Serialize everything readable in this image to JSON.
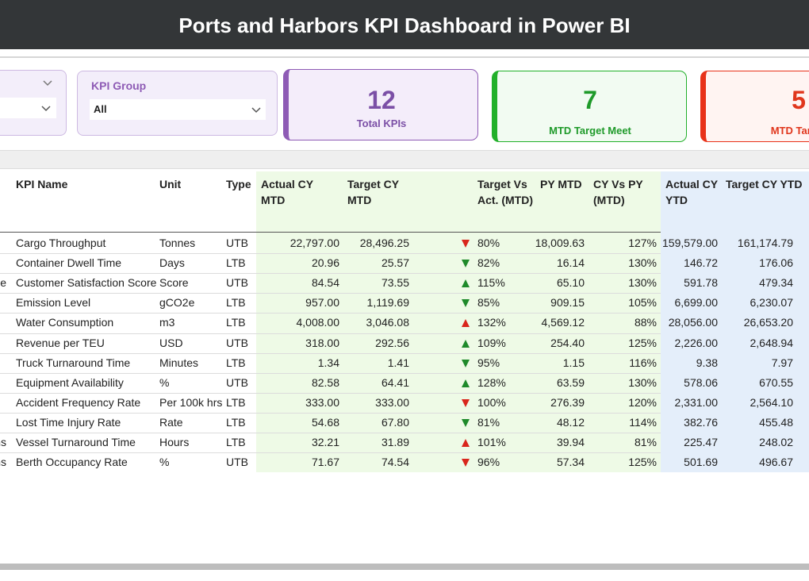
{
  "header": {
    "title": "Ports and Harbors KPI Dashboard in Power BI"
  },
  "slicers": [
    {
      "label": "KPI Group",
      "value": "All"
    }
  ],
  "cards": [
    {
      "value": "12",
      "label": "Total KPIs",
      "color": "#7b4fa6",
      "border": "#8e5bb5",
      "background": "#f4edfa"
    },
    {
      "value": "7",
      "label": "MTD Target Meet",
      "color": "#1f9a2a",
      "border": "#22b02a",
      "background": "#f2fbf2"
    },
    {
      "value": "5",
      "label": "MTD Target",
      "color": "#e0361c",
      "border": "#e8321a",
      "background": "#fff4f2"
    }
  ],
  "table": {
    "headers": [
      "KPI Name",
      "Unit",
      "Type",
      "Actual CY MTD",
      "Target CY MTD",
      "Target Vs Act. (MTD)",
      "PY MTD",
      "CY Vs PY (MTD)",
      "Actual CY YTD",
      "Target CY YTD"
    ],
    "rows": [
      {
        "group": null,
        "cells": [
          "Cargo Throughput",
          "Tonnes",
          "UTB",
          "22,797.00",
          "28,496.25",
          "80%",
          "18,009.63",
          "127%",
          "159,579.00",
          "161,174.79"
        ],
        "arrow": "down",
        "arrow_color": "#d9261c"
      },
      {
        "group": null,
        "cells": [
          "Container Dwell Time",
          "Days",
          "LTB",
          "20.96",
          "25.57",
          "82%",
          "16.14",
          "130%",
          "146.72",
          "176.06"
        ],
        "arrow": "down",
        "arrow_color": "#1e8a2a"
      },
      {
        "group": "e",
        "cells": [
          "Customer Satisfaction Score",
          "Score",
          "UTB",
          "84.54",
          "73.55",
          "115%",
          "65.10",
          "130%",
          "591.78",
          "479.34"
        ],
        "arrow": "up",
        "arrow_color": "#1e8a2a"
      },
      {
        "group": null,
        "cells": [
          "Emission Level",
          "gCO2e",
          "LTB",
          "957.00",
          "1,119.69",
          "85%",
          "909.15",
          "105%",
          "6,699.00",
          "6,230.07"
        ],
        "arrow": "down",
        "arrow_color": "#1e8a2a"
      },
      {
        "group": null,
        "cells": [
          "Water Consumption",
          "m3",
          "LTB",
          "4,008.00",
          "3,046.08",
          "132%",
          "4,569.12",
          "88%",
          "28,056.00",
          "26,653.20"
        ],
        "arrow": "up",
        "arrow_color": "#d9261c"
      },
      {
        "group": null,
        "cells": [
          "Revenue per TEU",
          "USD",
          "UTB",
          "318.00",
          "292.56",
          "109%",
          "254.40",
          "125%",
          "2,226.00",
          "2,648.94"
        ],
        "arrow": "up",
        "arrow_color": "#1e8a2a"
      },
      {
        "group": null,
        "cells": [
          "Truck Turnaround Time",
          "Minutes",
          "LTB",
          "1.34",
          "1.41",
          "95%",
          "1.15",
          "116%",
          "9.38",
          "7.97"
        ],
        "arrow": "down",
        "arrow_color": "#1e8a2a"
      },
      {
        "group": null,
        "cells": [
          "Equipment Availability",
          "%",
          "UTB",
          "82.58",
          "64.41",
          "128%",
          "63.59",
          "130%",
          "578.06",
          "670.55"
        ],
        "arrow": "up",
        "arrow_color": "#1e8a2a"
      },
      {
        "group": null,
        "cells": [
          "Accident Frequency Rate",
          "Per 100k hrs",
          "LTB",
          "333.00",
          "333.00",
          "100%",
          "276.39",
          "120%",
          "2,331.00",
          "2,564.10"
        ],
        "arrow": "down",
        "arrow_color": "#d9261c"
      },
      {
        "group": null,
        "cells": [
          "Lost Time Injury Rate",
          "Rate",
          "LTB",
          "54.68",
          "67.80",
          "81%",
          "48.12",
          "114%",
          "382.76",
          "455.48"
        ],
        "arrow": "down",
        "arrow_color": "#1e8a2a"
      },
      {
        "group": "ns",
        "cells": [
          "Vessel Turnaround Time",
          "Hours",
          "LTB",
          "32.21",
          "31.89",
          "101%",
          "39.94",
          "81%",
          "225.47",
          "248.02"
        ],
        "arrow": "up",
        "arrow_color": "#d9261c"
      },
      {
        "group": "ns",
        "cells": [
          "Berth Occupancy Rate",
          "%",
          "UTB",
          "71.67",
          "74.54",
          "96%",
          "57.34",
          "125%",
          "501.69",
          "496.67"
        ],
        "arrow": "down",
        "arrow_color": "#d9261c"
      }
    ]
  }
}
